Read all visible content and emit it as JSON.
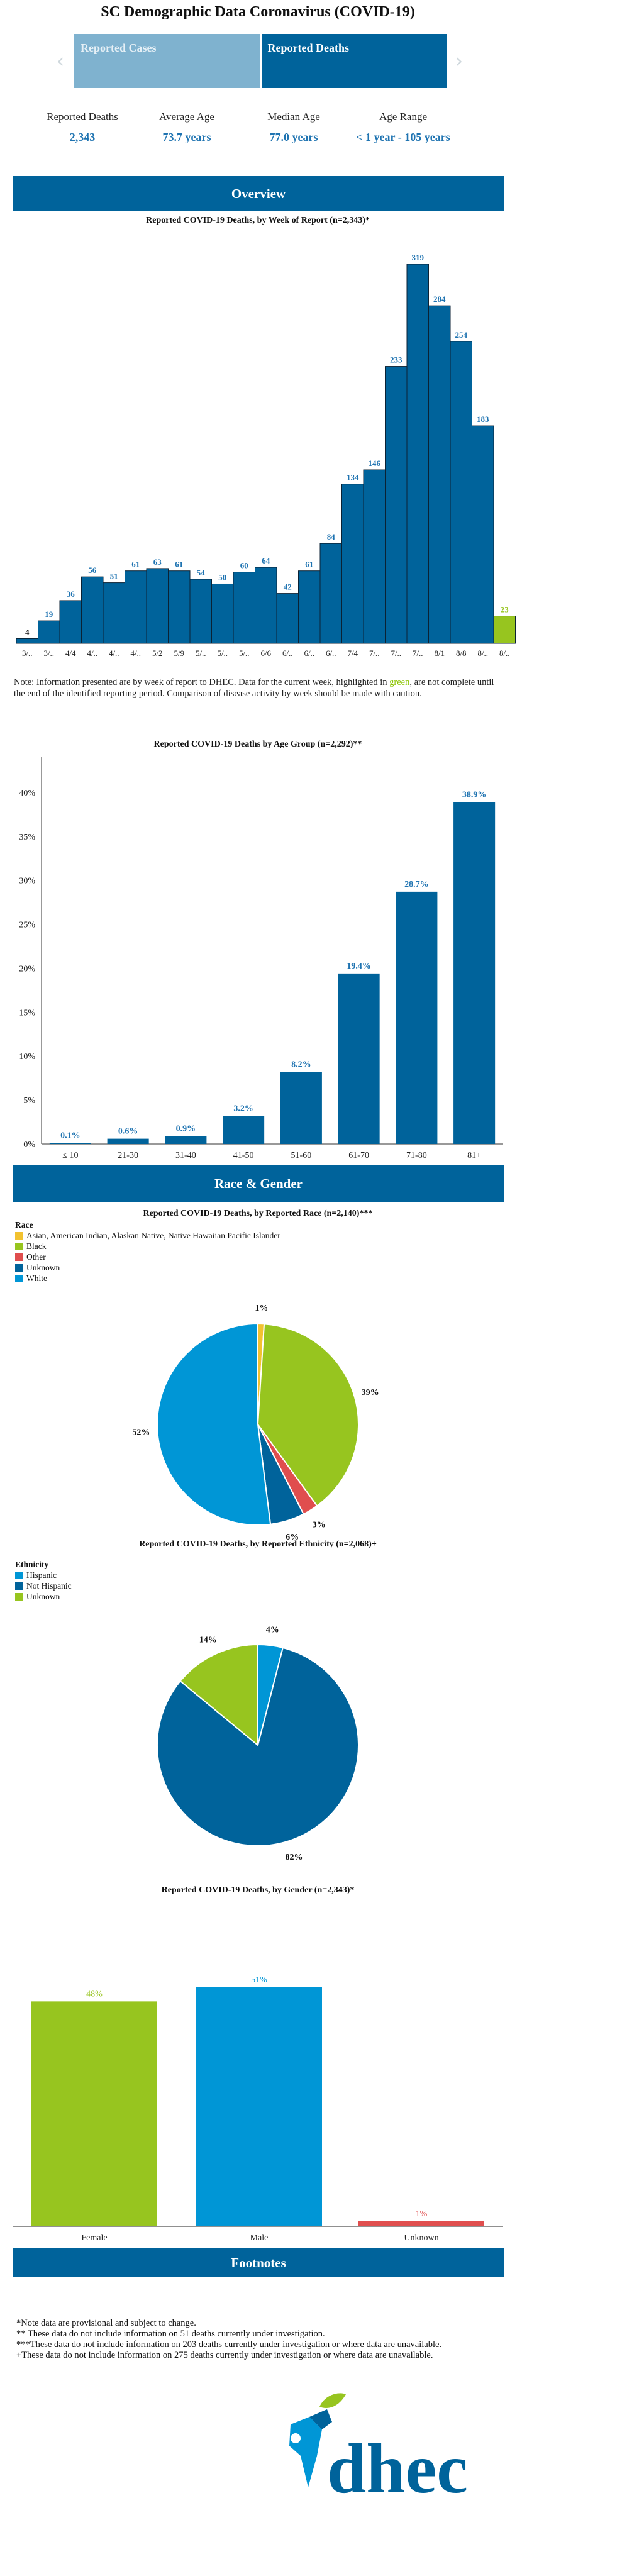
{
  "page_title": "SC Demographic Data Coronavirus (COVID-19)",
  "tabs": [
    {
      "label": "Reported Cases",
      "active": false
    },
    {
      "label": "Reported Deaths",
      "active": true
    }
  ],
  "nav": {
    "prev_icon": "‹",
    "next_icon": "›"
  },
  "stats": [
    {
      "label": "Reported Deaths",
      "value": "2,343"
    },
    {
      "label": "Average Age",
      "value": "73.7 years"
    },
    {
      "label": "Median Age",
      "value": "77.0 years"
    },
    {
      "label": "Age Range",
      "value": "< 1 year - 105 years"
    }
  ],
  "sections": {
    "overview": "Overview",
    "race_gender": "Race & Gender",
    "footnotes": "Footnotes"
  },
  "note": {
    "before": "Note: Information presented are by week of report to DHEC. Data for the current week, highlighted in ",
    "highlight": "green",
    "after": ", are not complete until the end of the identified reporting period. Comparison of disease activity by week should be made with caution."
  },
  "colors": {
    "primary": "#00639b",
    "bright_blue": "#0096d6",
    "light_green": "#97c51f",
    "red": "#e04e4e",
    "yellow": "#f2c230",
    "label_blue": "#1e73b1"
  },
  "chart_data": [
    {
      "type": "bar",
      "title": "Reported COVID-19 Deaths, by Week of Report (n=2,343)*",
      "categories": [
        "3/..",
        "3/..",
        "4/4",
        "4/..",
        "4/..",
        "4/..",
        "5/2",
        "5/9",
        "5/..",
        "5/..",
        "5/..",
        "6/6",
        "6/..",
        "6/..",
        "6/..",
        "7/4",
        "7/..",
        "7/..",
        "7/..",
        "8/1",
        "8/8",
        "8/..",
        "8/.."
      ],
      "values": [
        4,
        19,
        36,
        56,
        51,
        61,
        63,
        61,
        54,
        50,
        60,
        64,
        42,
        61,
        84,
        134,
        146,
        233,
        319,
        284,
        254,
        183,
        23
      ],
      "highlight_last": true,
      "grid": false
    },
    {
      "type": "bar",
      "title": "Reported COVID-19 Deaths by Age Group (n=2,292)**",
      "categories": [
        "≤ 10",
        "21-30",
        "31-40",
        "41-50",
        "51-60",
        "61-70",
        "71-80",
        "81+"
      ],
      "values": [
        0.1,
        0.6,
        0.9,
        3.2,
        8.2,
        19.4,
        28.7,
        38.9
      ],
      "value_labels": [
        "0.1%",
        "0.6%",
        "0.9%",
        "3.2%",
        "8.2%",
        "19.4%",
        "28.7%",
        "38.9%"
      ],
      "yticks": [
        "0%",
        "5%",
        "10%",
        "15%",
        "20%",
        "25%",
        "30%",
        "35%",
        "40%"
      ],
      "ylim": [
        0,
        42
      ]
    },
    {
      "type": "pie",
      "title": "Reported COVID-19 Deaths, by Reported Race (n=2,140)***",
      "legend_title": "Race",
      "legend": [
        {
          "label": "Asian, American Indian, Alaskan Native, Native Hawaiian Pacific Islander",
          "color": "#f2c230"
        },
        {
          "label": "Black",
          "color": "#97c51f"
        },
        {
          "label": "Other",
          "color": "#e04e4e"
        },
        {
          "label": "Unknown",
          "color": "#00639b"
        },
        {
          "label": "White",
          "color": "#0096d6"
        }
      ],
      "slices": [
        {
          "label": "Asian, American Indian, Alaskan Native, Native Hawaiian Pacific Islander",
          "value": 1,
          "text": "1%",
          "color": "#f2c230"
        },
        {
          "label": "Black",
          "value": 39,
          "text": "39%",
          "color": "#97c51f"
        },
        {
          "label": "Other",
          "value": 2.5,
          "text": "3%",
          "color": "#e04e4e"
        },
        {
          "label": "Unknown",
          "value": 5.5,
          "text": "6%",
          "color": "#00639b"
        },
        {
          "label": "White",
          "value": 52,
          "text": "52%",
          "color": "#0096d6"
        }
      ]
    },
    {
      "type": "pie",
      "title": "Reported COVID-19 Deaths, by Reported Ethnicity (n=2,068)+",
      "legend_title": "Ethnicity",
      "legend": [
        {
          "label": "Hispanic",
          "color": "#0096d6"
        },
        {
          "label": "Not Hispanic",
          "color": "#00639b"
        },
        {
          "label": "Unknown",
          "color": "#97c51f"
        }
      ],
      "slices": [
        {
          "label": "Hispanic",
          "value": 4,
          "text": "4%",
          "color": "#0096d6"
        },
        {
          "label": "Not Hispanic",
          "value": 82,
          "text": "82%",
          "color": "#00639b"
        },
        {
          "label": "Unknown",
          "value": 14,
          "text": "14%",
          "color": "#97c51f"
        }
      ]
    },
    {
      "type": "bar",
      "title": "Reported COVID-19 Deaths, by Gender (n=2,343)*",
      "categories": [
        "Female",
        "Male",
        "Unknown"
      ],
      "values": [
        48,
        51,
        1
      ],
      "value_labels": [
        "48%",
        "51%",
        "1%"
      ],
      "colors": [
        "#97c51f",
        "#0096d6",
        "#e04e4e"
      ]
    }
  ],
  "footnotes": [
    "*Note data are provisional and subject to change.",
    "** These data do not include information on 51 deaths currently under investigation.",
    "***These data do not include information on 203 deaths currently under investigation or where data are unavailable.",
    "+These data do not include information on 275 deaths currently under investigation or where data are unavailable."
  ],
  "logo": {
    "text": "dhec"
  }
}
